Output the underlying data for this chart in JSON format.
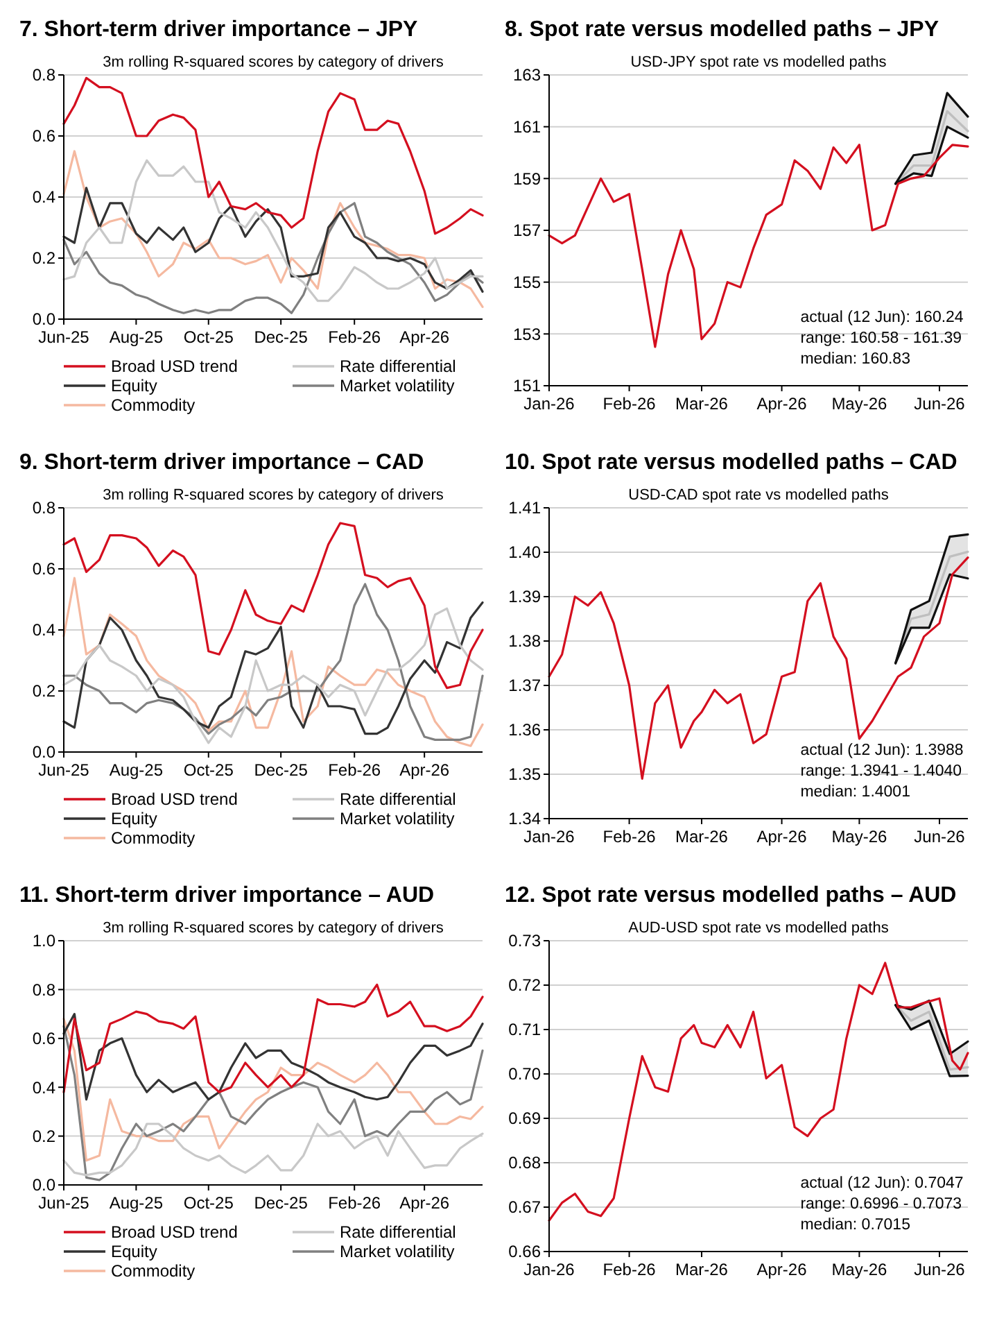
{
  "chart_data": [
    {
      "type": "line",
      "title": "7. Short-term driver importance – JPY",
      "subtitle": "3m rolling R-squared scores by category of drivers",
      "legend": "bottom",
      "grid": "y",
      "xlim": [
        "2025-06-01",
        "2026-05-20"
      ],
      "xticks": [
        {
          "value": "2025-06-01",
          "label": "Jun-25"
        },
        {
          "value": "2025-08-01",
          "label": "Aug-25"
        },
        {
          "value": "2025-10-01",
          "label": "Oct-25"
        },
        {
          "value": "2025-12-01",
          "label": "Dec-25"
        },
        {
          "value": "2026-02-01",
          "label": "Feb-26"
        },
        {
          "value": "2026-04-01",
          "label": "Apr-26"
        }
      ],
      "ylim": [
        0,
        0.8
      ],
      "yticks": [
        {
          "value": 0,
          "label": "0.0"
        },
        {
          "value": 0.2,
          "label": "0.2"
        },
        {
          "value": 0.4,
          "label": "0.4"
        },
        {
          "value": 0.6,
          "label": "0.6"
        },
        {
          "value": 0.8,
          "label": "0.8"
        }
      ],
      "x": [
        "2025-06-01",
        "2025-06-10",
        "2025-06-20",
        "2025-07-01",
        "2025-07-10",
        "2025-07-20",
        "2025-08-01",
        "2025-08-10",
        "2025-08-20",
        "2025-09-01",
        "2025-09-10",
        "2025-09-20",
        "2025-10-01",
        "2025-10-10",
        "2025-10-20",
        "2025-11-01",
        "2025-11-10",
        "2025-11-20",
        "2025-12-01",
        "2025-12-10",
        "2025-12-20",
        "2026-01-01",
        "2026-01-10",
        "2026-01-20",
        "2026-02-01",
        "2026-02-10",
        "2026-02-20",
        "2026-03-01",
        "2026-03-10",
        "2026-03-20",
        "2026-04-01",
        "2026-04-10",
        "2026-04-20",
        "2026-05-01",
        "2026-05-10",
        "2026-05-20"
      ],
      "series": [
        {
          "name": "Broad USD trend",
          "color": "#d40f1f",
          "values": [
            0.64,
            0.7,
            0.79,
            0.76,
            0.76,
            0.74,
            0.6,
            0.6,
            0.65,
            0.67,
            0.66,
            0.62,
            0.4,
            0.45,
            0.37,
            0.36,
            0.38,
            0.35,
            0.34,
            0.3,
            0.33,
            0.55,
            0.68,
            0.74,
            0.72,
            0.62,
            0.62,
            0.65,
            0.64,
            0.55,
            0.42,
            0.28,
            0.3,
            0.33,
            0.36,
            0.34
          ]
        },
        {
          "name": "Rate differential",
          "color": "#c8c8c8",
          "values": [
            0.13,
            0.14,
            0.25,
            0.3,
            0.25,
            0.25,
            0.45,
            0.52,
            0.47,
            0.47,
            0.5,
            0.45,
            0.45,
            0.35,
            0.33,
            0.3,
            0.35,
            0.3,
            0.22,
            0.15,
            0.12,
            0.06,
            0.06,
            0.1,
            0.17,
            0.15,
            0.12,
            0.1,
            0.1,
            0.12,
            0.15,
            0.2,
            0.1,
            0.12,
            0.14,
            0.14
          ]
        },
        {
          "name": "Equity",
          "color": "#333333",
          "values": [
            0.27,
            0.25,
            0.43,
            0.3,
            0.38,
            0.38,
            0.28,
            0.25,
            0.3,
            0.26,
            0.3,
            0.22,
            0.25,
            0.33,
            0.37,
            0.27,
            0.32,
            0.36,
            0.3,
            0.14,
            0.14,
            0.15,
            0.3,
            0.35,
            0.27,
            0.25,
            0.2,
            0.2,
            0.19,
            0.2,
            0.18,
            0.12,
            0.1,
            0.13,
            0.16,
            0.09
          ]
        },
        {
          "name": "Market volatility",
          "color": "#808080",
          "values": [
            0.26,
            0.18,
            0.22,
            0.15,
            0.12,
            0.11,
            0.08,
            0.07,
            0.05,
            0.03,
            0.02,
            0.03,
            0.02,
            0.03,
            0.03,
            0.06,
            0.07,
            0.07,
            0.05,
            0.02,
            0.08,
            0.2,
            0.28,
            0.35,
            0.38,
            0.27,
            0.25,
            0.22,
            0.2,
            0.18,
            0.12,
            0.06,
            0.08,
            0.12,
            0.15,
            0.12
          ]
        },
        {
          "name": "Commodity",
          "color": "#f5b9a0",
          "values": [
            0.41,
            0.55,
            0.4,
            0.3,
            0.32,
            0.33,
            0.28,
            0.22,
            0.14,
            0.18,
            0.25,
            0.23,
            0.26,
            0.2,
            0.2,
            0.18,
            0.19,
            0.21,
            0.12,
            0.2,
            0.16,
            0.1,
            0.28,
            0.38,
            0.3,
            0.25,
            0.24,
            0.23,
            0.21,
            0.21,
            0.2,
            0.1,
            0.13,
            0.12,
            0.1,
            0.04
          ]
        }
      ]
    },
    {
      "type": "line",
      "title": "8. Spot rate versus modelled paths – JPY",
      "subtitle": "USD-JPY spot rate vs modelled paths",
      "grid": "y",
      "annotations": [
        "actual (12 Jun): 160.24",
        "range: 160.58 - 161.39",
        "median: 160.83"
      ],
      "xlim": [
        "2026-01-01",
        "2026-06-12"
      ],
      "xticks": [
        {
          "value": "2026-01-01",
          "label": "Jan-26"
        },
        {
          "value": "2026-02-01",
          "label": "Feb-26"
        },
        {
          "value": "2026-03-01",
          "label": "Mar-26"
        },
        {
          "value": "2026-04-01",
          "label": "Apr-26"
        },
        {
          "value": "2026-05-01",
          "label": "May-26"
        },
        {
          "value": "2026-06-01",
          "label": "Jun-26"
        }
      ],
      "ylim": [
        151,
        163
      ],
      "yticks": [
        151,
        153,
        155,
        157,
        159,
        161,
        163
      ],
      "series": [
        {
          "color": "#bfbfbf",
          "x": [
            "2026-05-15",
            "2026-05-22",
            "2026-05-29",
            "2026-06-04",
            "2026-06-12"
          ],
          "values": [
            158.8,
            159.5,
            159.5,
            161.6,
            160.83
          ],
          "lower": [
            158.8,
            159.2,
            159.1,
            161.0,
            160.58
          ],
          "upper": [
            158.8,
            159.9,
            160.0,
            162.3,
            161.39
          ]
        },
        {
          "color": "#111111",
          "x": [
            "2026-05-15",
            "2026-05-22",
            "2026-05-29",
            "2026-06-04",
            "2026-06-12"
          ],
          "values": [
            158.8,
            159.2,
            159.1,
            161.0,
            160.58
          ]
        },
        {
          "color": "#111111",
          "x": [
            "2026-05-15",
            "2026-05-22",
            "2026-05-29",
            "2026-06-04",
            "2026-06-12"
          ],
          "values": [
            158.8,
            159.9,
            160.0,
            162.3,
            161.39
          ]
        },
        {
          "color": "#d40f1f",
          "x": [
            "2026-01-01",
            "2026-01-06",
            "2026-01-11",
            "2026-01-16",
            "2026-01-21",
            "2026-01-26",
            "2026-02-01",
            "2026-02-06",
            "2026-02-11",
            "2026-02-16",
            "2026-02-21",
            "2026-02-26",
            "2026-03-01",
            "2026-03-06",
            "2026-03-11",
            "2026-03-16",
            "2026-03-21",
            "2026-03-26",
            "2026-04-01",
            "2026-04-06",
            "2026-04-11",
            "2026-04-16",
            "2026-04-21",
            "2026-04-26",
            "2026-05-01",
            "2026-05-06",
            "2026-05-11",
            "2026-05-16",
            "2026-05-21",
            "2026-05-26",
            "2026-06-01",
            "2026-06-06",
            "2026-06-12"
          ],
          "values": [
            156.8,
            156.5,
            156.8,
            157.9,
            159.0,
            158.1,
            158.4,
            155.5,
            152.5,
            155.3,
            157.0,
            155.5,
            152.8,
            153.4,
            155.0,
            154.8,
            156.3,
            157.6,
            158.0,
            159.7,
            159.3,
            158.6,
            160.2,
            159.6,
            160.3,
            157.0,
            157.2,
            158.8,
            159.0,
            159.1,
            159.8,
            160.3,
            160.24
          ]
        }
      ]
    },
    {
      "type": "line",
      "title": "9. Short-term driver importance – CAD",
      "subtitle": "3m rolling R-squared scores by category of drivers",
      "legend": "bottom",
      "grid": "y",
      "xlim": [
        "2025-06-01",
        "2026-05-20"
      ],
      "xticks": [
        {
          "value": "2025-06-01",
          "label": "Jun-25"
        },
        {
          "value": "2025-08-01",
          "label": "Aug-25"
        },
        {
          "value": "2025-10-01",
          "label": "Oct-25"
        },
        {
          "value": "2025-12-01",
          "label": "Dec-25"
        },
        {
          "value": "2026-02-01",
          "label": "Feb-26"
        },
        {
          "value": "2026-04-01",
          "label": "Apr-26"
        }
      ],
      "ylim": [
        0,
        0.8
      ],
      "yticks": [
        {
          "value": 0,
          "label": "0.0"
        },
        {
          "value": 0.2,
          "label": "0.2"
        },
        {
          "value": 0.4,
          "label": "0.4"
        },
        {
          "value": 0.6,
          "label": "0.6"
        },
        {
          "value": 0.8,
          "label": "0.8"
        }
      ],
      "x": [
        "2025-06-01",
        "2025-06-10",
        "2025-06-20",
        "2025-07-01",
        "2025-07-10",
        "2025-07-20",
        "2025-08-01",
        "2025-08-10",
        "2025-08-20",
        "2025-09-01",
        "2025-09-10",
        "2025-09-20",
        "2025-10-01",
        "2025-10-10",
        "2025-10-20",
        "2025-11-01",
        "2025-11-10",
        "2025-11-20",
        "2025-12-01",
        "2025-12-10",
        "2025-12-20",
        "2026-01-01",
        "2026-01-10",
        "2026-01-20",
        "2026-02-01",
        "2026-02-10",
        "2026-02-20",
        "2026-03-01",
        "2026-03-10",
        "2026-03-20",
        "2026-04-01",
        "2026-04-10",
        "2026-04-20",
        "2026-05-01",
        "2026-05-10",
        "2026-05-20"
      ],
      "series": [
        {
          "name": "Broad USD trend",
          "color": "#d40f1f",
          "values": [
            0.68,
            0.7,
            0.59,
            0.63,
            0.71,
            0.71,
            0.7,
            0.67,
            0.61,
            0.66,
            0.64,
            0.58,
            0.33,
            0.32,
            0.4,
            0.53,
            0.45,
            0.43,
            0.42,
            0.48,
            0.46,
            0.58,
            0.68,
            0.75,
            0.74,
            0.58,
            0.57,
            0.54,
            0.56,
            0.57,
            0.48,
            0.28,
            0.21,
            0.22,
            0.33,
            0.4
          ]
        },
        {
          "name": "Rate differential",
          "color": "#c8c8c8",
          "values": [
            0.22,
            0.24,
            0.3,
            0.35,
            0.3,
            0.28,
            0.25,
            0.2,
            0.24,
            0.22,
            0.18,
            0.1,
            0.03,
            0.08,
            0.05,
            0.15,
            0.3,
            0.2,
            0.22,
            0.22,
            0.25,
            0.22,
            0.18,
            0.22,
            0.2,
            0.12,
            0.2,
            0.27,
            0.27,
            0.3,
            0.35,
            0.45,
            0.47,
            0.35,
            0.3,
            0.27
          ]
        },
        {
          "name": "Equity",
          "color": "#333333",
          "values": [
            0.1,
            0.08,
            0.3,
            0.35,
            0.44,
            0.4,
            0.3,
            0.25,
            0.18,
            0.17,
            0.14,
            0.1,
            0.08,
            0.15,
            0.18,
            0.33,
            0.32,
            0.34,
            0.41,
            0.15,
            0.08,
            0.22,
            0.15,
            0.15,
            0.14,
            0.06,
            0.06,
            0.08,
            0.15,
            0.24,
            0.3,
            0.26,
            0.36,
            0.34,
            0.44,
            0.49
          ]
        },
        {
          "name": "Market volatility",
          "color": "#808080",
          "values": [
            0.25,
            0.25,
            0.22,
            0.2,
            0.16,
            0.16,
            0.13,
            0.16,
            0.17,
            0.16,
            0.14,
            0.11,
            0.06,
            0.09,
            0.11,
            0.15,
            0.12,
            0.17,
            0.18,
            0.2,
            0.2,
            0.2,
            0.25,
            0.3,
            0.48,
            0.55,
            0.45,
            0.4,
            0.3,
            0.15,
            0.05,
            0.04,
            0.04,
            0.04,
            0.05,
            0.25
          ]
        },
        {
          "name": "Commodity",
          "color": "#f5b9a0",
          "values": [
            0.38,
            0.57,
            0.32,
            0.35,
            0.45,
            0.42,
            0.38,
            0.3,
            0.25,
            0.22,
            0.2,
            0.16,
            0.07,
            0.1,
            0.1,
            0.2,
            0.08,
            0.08,
            0.2,
            0.33,
            0.1,
            0.15,
            0.28,
            0.25,
            0.22,
            0.22,
            0.27,
            0.26,
            0.22,
            0.2,
            0.18,
            0.1,
            0.05,
            0.03,
            0.02,
            0.09
          ]
        }
      ]
    },
    {
      "type": "line",
      "title": "10. Spot rate versus modelled paths – CAD",
      "subtitle": "USD-CAD spot rate vs modelled paths",
      "grid": "y",
      "annotations": [
        "actual (12 Jun): 1.3988",
        "range: 1.3941 - 1.4040",
        "median: 1.4001"
      ],
      "xlim": [
        "2026-01-01",
        "2026-06-12"
      ],
      "xticks": [
        {
          "value": "2026-01-01",
          "label": "Jan-26"
        },
        {
          "value": "2026-02-01",
          "label": "Feb-26"
        },
        {
          "value": "2026-03-01",
          "label": "Mar-26"
        },
        {
          "value": "2026-04-01",
          "label": "Apr-26"
        },
        {
          "value": "2026-05-01",
          "label": "May-26"
        },
        {
          "value": "2026-06-01",
          "label": "Jun-26"
        }
      ],
      "ylim": [
        1.34,
        1.41
      ],
      "yticks": [
        1.34,
        1.35,
        1.36,
        1.37,
        1.38,
        1.39,
        {
          "value": 1.4,
          "label": "1.40"
        },
        1.41
      ],
      "series": [
        {
          "color": "#bfbfbf",
          "x": [
            "2026-05-15",
            "2026-05-21",
            "2026-05-28",
            "2026-06-05",
            "2026-06-12"
          ],
          "values": [
            1.375,
            1.385,
            1.386,
            1.399,
            1.4001
          ],
          "lower": [
            1.375,
            1.383,
            1.383,
            1.395,
            1.3941
          ],
          "upper": [
            1.375,
            1.387,
            1.389,
            1.4035,
            1.404
          ]
        },
        {
          "color": "#111111",
          "x": [
            "2026-05-15",
            "2026-05-21",
            "2026-05-28",
            "2026-06-05",
            "2026-06-12"
          ],
          "values": [
            1.375,
            1.383,
            1.383,
            1.395,
            1.3941
          ]
        },
        {
          "color": "#111111",
          "x": [
            "2026-05-15",
            "2026-05-21",
            "2026-05-28",
            "2026-06-05",
            "2026-06-12"
          ],
          "values": [
            1.375,
            1.387,
            1.389,
            1.4035,
            1.404
          ]
        },
        {
          "color": "#d40f1f",
          "x": [
            "2026-01-01",
            "2026-01-06",
            "2026-01-11",
            "2026-01-16",
            "2026-01-21",
            "2026-01-26",
            "2026-02-01",
            "2026-02-06",
            "2026-02-11",
            "2026-02-16",
            "2026-02-21",
            "2026-02-26",
            "2026-03-01",
            "2026-03-06",
            "2026-03-11",
            "2026-03-16",
            "2026-03-21",
            "2026-03-26",
            "2026-04-01",
            "2026-04-06",
            "2026-04-11",
            "2026-04-16",
            "2026-04-21",
            "2026-04-26",
            "2026-05-01",
            "2026-05-06",
            "2026-05-11",
            "2026-05-16",
            "2026-05-21",
            "2026-05-26",
            "2026-06-01",
            "2026-06-06",
            "2026-06-12"
          ],
          "values": [
            1.372,
            1.377,
            1.39,
            1.388,
            1.391,
            1.384,
            1.37,
            1.349,
            1.366,
            1.37,
            1.356,
            1.362,
            1.364,
            1.369,
            1.366,
            1.368,
            1.357,
            1.359,
            1.372,
            1.373,
            1.389,
            1.393,
            1.381,
            1.376,
            1.358,
            1.362,
            1.367,
            1.372,
            1.374,
            1.381,
            1.384,
            1.395,
            1.3988
          ]
        }
      ]
    },
    {
      "type": "line",
      "title": "11. Short-term driver importance – AUD",
      "subtitle": "3m rolling R-squared scores by category of drivers",
      "legend": "bottom",
      "grid": "y",
      "xlim": [
        "2025-06-01",
        "2026-05-20"
      ],
      "xticks": [
        {
          "value": "2025-06-01",
          "label": "Jun-25"
        },
        {
          "value": "2025-08-01",
          "label": "Aug-25"
        },
        {
          "value": "2025-10-01",
          "label": "Oct-25"
        },
        {
          "value": "2025-12-01",
          "label": "Dec-25"
        },
        {
          "value": "2026-02-01",
          "label": "Feb-26"
        },
        {
          "value": "2026-04-01",
          "label": "Apr-26"
        }
      ],
      "ylim": [
        0,
        1
      ],
      "yticks": [
        {
          "value": 0,
          "label": "0.0"
        },
        {
          "value": 0.2,
          "label": "0.2"
        },
        {
          "value": 0.4,
          "label": "0.4"
        },
        {
          "value": 0.6,
          "label": "0.6"
        },
        {
          "value": 0.8,
          "label": "0.8"
        },
        {
          "value": 1,
          "label": "1.0"
        }
      ],
      "x": [
        "2025-06-01",
        "2025-06-10",
        "2025-06-20",
        "2025-07-01",
        "2025-07-10",
        "2025-07-20",
        "2025-08-01",
        "2025-08-10",
        "2025-08-20",
        "2025-09-01",
        "2025-09-10",
        "2025-09-20",
        "2025-10-01",
        "2025-10-10",
        "2025-10-20",
        "2025-11-01",
        "2025-11-10",
        "2025-11-20",
        "2025-12-01",
        "2025-12-10",
        "2025-12-20",
        "2026-01-01",
        "2026-01-10",
        "2026-01-20",
        "2026-02-01",
        "2026-02-10",
        "2026-02-20",
        "2026-03-01",
        "2026-03-10",
        "2026-03-20",
        "2026-04-01",
        "2026-04-10",
        "2026-04-20",
        "2026-05-01",
        "2026-05-10",
        "2026-05-20"
      ],
      "series": [
        {
          "name": "Broad USD trend",
          "color": "#d40f1f",
          "values": [
            0.38,
            0.68,
            0.47,
            0.5,
            0.66,
            0.68,
            0.71,
            0.7,
            0.67,
            0.66,
            0.64,
            0.69,
            0.42,
            0.38,
            0.4,
            0.5,
            0.45,
            0.4,
            0.45,
            0.4,
            0.45,
            0.76,
            0.74,
            0.74,
            0.73,
            0.75,
            0.82,
            0.69,
            0.71,
            0.75,
            0.65,
            0.65,
            0.63,
            0.65,
            0.69,
            0.77
          ]
        },
        {
          "name": "Rate differential",
          "color": "#c8c8c8",
          "values": [
            0.1,
            0.05,
            0.04,
            0.05,
            0.05,
            0.08,
            0.15,
            0.25,
            0.25,
            0.2,
            0.15,
            0.12,
            0.1,
            0.12,
            0.08,
            0.05,
            0.08,
            0.12,
            0.06,
            0.06,
            0.12,
            0.25,
            0.2,
            0.22,
            0.15,
            0.18,
            0.2,
            0.12,
            0.22,
            0.15,
            0.07,
            0.08,
            0.08,
            0.15,
            0.18,
            0.21
          ]
        },
        {
          "name": "Equity",
          "color": "#333333",
          "values": [
            0.62,
            0.7,
            0.35,
            0.55,
            0.58,
            0.6,
            0.45,
            0.38,
            0.43,
            0.38,
            0.4,
            0.42,
            0.35,
            0.38,
            0.48,
            0.58,
            0.52,
            0.55,
            0.55,
            0.5,
            0.48,
            0.45,
            0.42,
            0.4,
            0.38,
            0.36,
            0.35,
            0.36,
            0.42,
            0.5,
            0.57,
            0.57,
            0.53,
            0.55,
            0.57,
            0.66
          ]
        },
        {
          "name": "Market volatility",
          "color": "#808080",
          "values": [
            0.65,
            0.45,
            0.03,
            0.02,
            0.05,
            0.15,
            0.25,
            0.2,
            0.22,
            0.25,
            0.22,
            0.28,
            0.35,
            0.38,
            0.28,
            0.25,
            0.3,
            0.35,
            0.38,
            0.4,
            0.42,
            0.4,
            0.3,
            0.25,
            0.35,
            0.2,
            0.22,
            0.2,
            0.25,
            0.3,
            0.3,
            0.35,
            0.38,
            0.33,
            0.35,
            0.55
          ]
        },
        {
          "name": "Commodity",
          "color": "#f5b9a0",
          "values": [
            0.68,
            0.55,
            0.1,
            0.12,
            0.35,
            0.22,
            0.2,
            0.2,
            0.18,
            0.18,
            0.25,
            0.28,
            0.28,
            0.15,
            0.22,
            0.3,
            0.35,
            0.38,
            0.48,
            0.45,
            0.45,
            0.5,
            0.48,
            0.45,
            0.42,
            0.45,
            0.5,
            0.45,
            0.38,
            0.38,
            0.3,
            0.25,
            0.25,
            0.28,
            0.27,
            0.32
          ]
        }
      ]
    },
    {
      "type": "line",
      "title": "12. Spot rate versus modelled paths – AUD",
      "subtitle": "AUD-USD spot rate vs modelled paths",
      "grid": "y",
      "annotations": [
        "actual (12 Jun): 0.7047",
        "range: 0.6996 - 0.7073",
        "median: 0.7015"
      ],
      "xlim": [
        "2026-01-01",
        "2026-06-12"
      ],
      "xticks": [
        {
          "value": "2026-01-01",
          "label": "Jan-26"
        },
        {
          "value": "2026-02-01",
          "label": "Feb-26"
        },
        {
          "value": "2026-03-01",
          "label": "Mar-26"
        },
        {
          "value": "2026-04-01",
          "label": "Apr-26"
        },
        {
          "value": "2026-05-01",
          "label": "May-26"
        },
        {
          "value": "2026-06-01",
          "label": "Jun-26"
        }
      ],
      "ylim": [
        0.66,
        0.73
      ],
      "yticks": [
        0.66,
        0.67,
        0.68,
        0.69,
        {
          "value": 0.7,
          "label": "0.70"
        },
        0.71,
        0.72,
        0.73
      ],
      "series": [
        {
          "color": "#bfbfbf",
          "x": [
            "2026-05-15",
            "2026-05-21",
            "2026-05-28",
            "2026-06-05",
            "2026-06-12"
          ],
          "values": [
            0.7155,
            0.712,
            0.714,
            0.701,
            0.7015
          ],
          "lower": [
            0.7155,
            0.71,
            0.712,
            0.6995,
            0.6996
          ],
          "upper": [
            0.7155,
            0.7145,
            0.7165,
            0.7045,
            0.7073
          ]
        },
        {
          "color": "#111111",
          "x": [
            "2026-05-15",
            "2026-05-21",
            "2026-05-28",
            "2026-06-05",
            "2026-06-12"
          ],
          "values": [
            0.7155,
            0.71,
            0.712,
            0.6995,
            0.6996
          ]
        },
        {
          "color": "#111111",
          "x": [
            "2026-05-15",
            "2026-05-21",
            "2026-05-28",
            "2026-06-05",
            "2026-06-12"
          ],
          "values": [
            0.7155,
            0.7145,
            0.7165,
            0.7045,
            0.7073
          ]
        },
        {
          "color": "#d40f1f",
          "x": [
            "2026-01-01",
            "2026-01-06",
            "2026-01-11",
            "2026-01-16",
            "2026-01-21",
            "2026-01-26",
            "2026-02-01",
            "2026-02-06",
            "2026-02-11",
            "2026-02-16",
            "2026-02-21",
            "2026-02-26",
            "2026-03-01",
            "2026-03-06",
            "2026-03-11",
            "2026-03-16",
            "2026-03-21",
            "2026-03-26",
            "2026-04-01",
            "2026-04-06",
            "2026-04-11",
            "2026-04-16",
            "2026-04-21",
            "2026-04-26",
            "2026-05-01",
            "2026-05-06",
            "2026-05-11",
            "2026-05-16",
            "2026-05-21",
            "2026-05-26",
            "2026-06-01",
            "2026-06-06",
            "2026-06-09",
            "2026-06-12"
          ],
          "values": [
            0.667,
            0.671,
            0.673,
            0.669,
            0.668,
            0.672,
            0.69,
            0.704,
            0.697,
            0.696,
            0.708,
            0.711,
            0.707,
            0.706,
            0.711,
            0.706,
            0.714,
            0.699,
            0.702,
            0.688,
            0.686,
            0.69,
            0.692,
            0.708,
            0.72,
            0.718,
            0.725,
            0.715,
            0.715,
            0.716,
            0.717,
            0.703,
            0.701,
            0.7047
          ]
        }
      ]
    }
  ]
}
